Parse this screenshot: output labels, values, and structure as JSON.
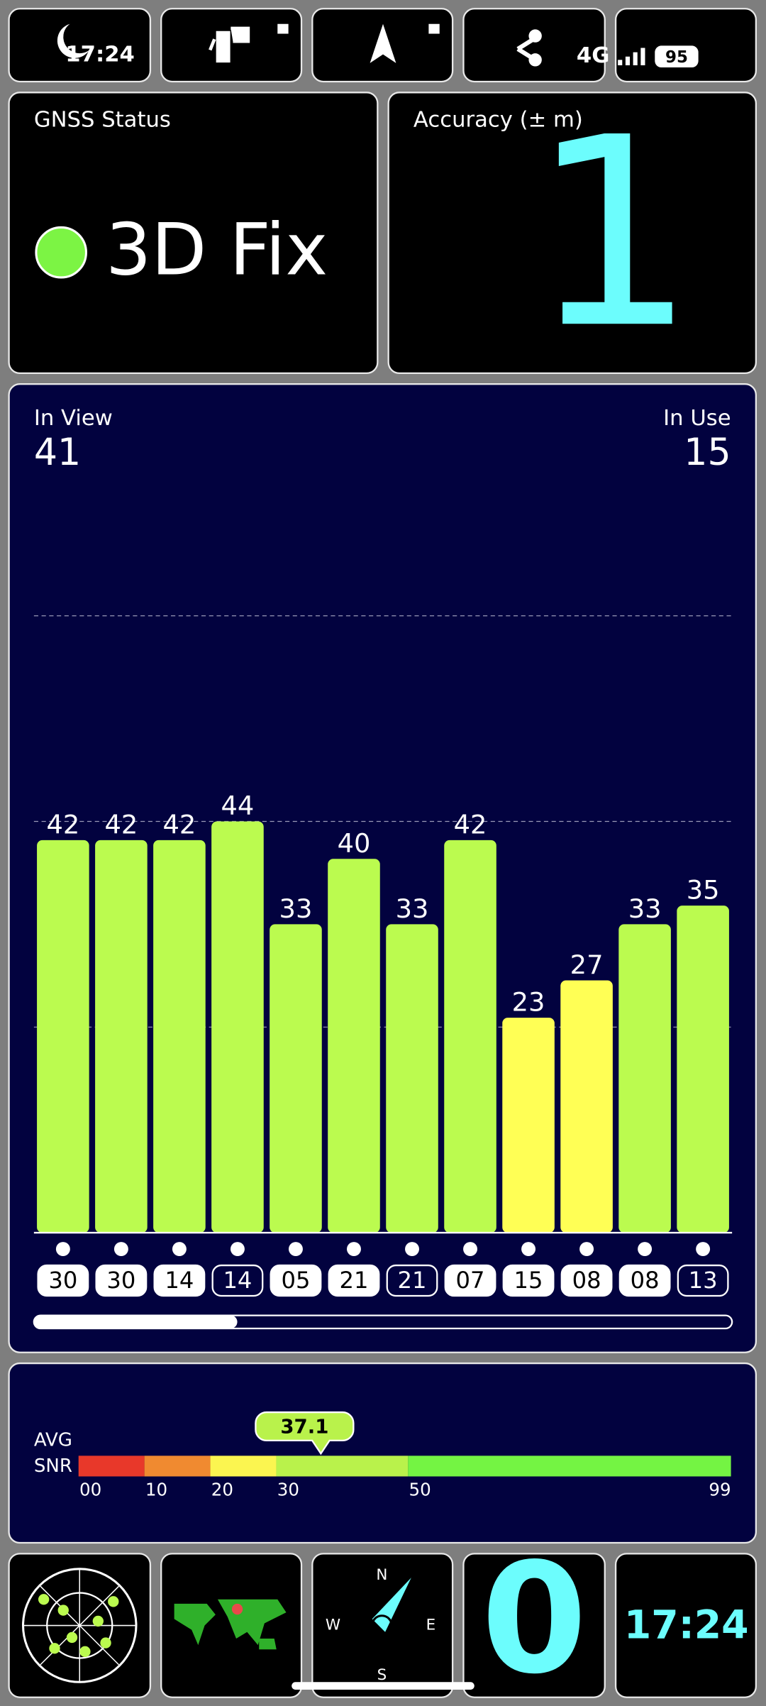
{
  "status_bar": {
    "time": "17:24",
    "network": "4G",
    "battery": "95"
  },
  "gnss": {
    "label": "GNSS Status",
    "value": "3D Fix"
  },
  "accuracy": {
    "label": "Accuracy (± m)",
    "value": "1"
  },
  "chart_data": {
    "type": "bar",
    "in_view_label": "In View",
    "in_view": 41,
    "in_use_label": "In Use",
    "in_use": 15,
    "categories": [
      "30",
      "30",
      "14",
      "14",
      "05",
      "21",
      "21",
      "07",
      "15",
      "08",
      "08",
      "13"
    ],
    "values": [
      42,
      42,
      42,
      44,
      33,
      40,
      33,
      42,
      23,
      27,
      33,
      35
    ],
    "colors": [
      "#bbfb4f",
      "#bbfb4f",
      "#bbfb4f",
      "#bbfb4f",
      "#bbfb4f",
      "#bbfb4f",
      "#bbfb4f",
      "#bbfb4f",
      "#ffff55",
      "#ffff55",
      "#bbfb4f",
      "#bbfb4f"
    ],
    "label_outlined": [
      false,
      false,
      false,
      true,
      false,
      false,
      true,
      false,
      false,
      false,
      false,
      true
    ],
    "ylim": [
      0,
      66
    ],
    "yticks": [
      22,
      44,
      66
    ],
    "grid": true
  },
  "snr": {
    "label_line1": "AVG",
    "label_line2": "SNR",
    "avg": 37.1,
    "xlim": [
      0,
      99
    ],
    "ticks": [
      {
        "value": 0,
        "label": "00"
      },
      10,
      20,
      30,
      50,
      99
    ],
    "colors": [
      "#e8382a",
      "#f08a30",
      "#fbf550",
      "#b9f24b",
      "#74f443"
    ]
  },
  "compass": {
    "n": "N",
    "e": "E",
    "s": "S",
    "w": "W"
  },
  "bottom": {
    "big_value": "0",
    "clock": "17:24"
  }
}
